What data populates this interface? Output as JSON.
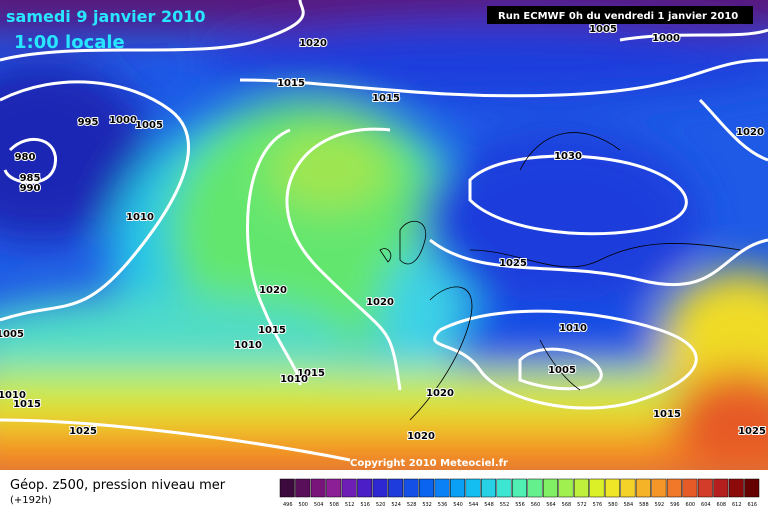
{
  "header": {
    "date": "samedi 9 janvier 2010",
    "time": "1:00 locale",
    "run": "Run ECMWF 0h du vendredi 1 janvier 2010"
  },
  "map": {
    "copyright": "Copyright 2010 Meteociel.fr",
    "isobar_labels": [
      1020,
      1005,
      1000,
      1015,
      1015,
      995,
      1000,
      1005,
      1020,
      980,
      985,
      990,
      1030,
      1010,
      1025,
      1020,
      1020,
      1015,
      1010,
      1005,
      1010,
      1005,
      1015,
      1010,
      1010,
      1015,
      1020,
      1015,
      1025,
      1025,
      1020
    ]
  },
  "footer": {
    "title": "Géop. z500, pression niveau mer",
    "lead": "(+192h)"
  },
  "legend": {
    "labels": [
      496,
      500,
      504,
      508,
      512,
      516,
      520,
      524,
      528,
      532,
      536,
      540,
      544,
      548,
      552,
      556,
      560,
      564,
      568,
      572,
      576,
      580,
      584,
      588,
      592,
      596,
      600,
      604,
      608,
      612,
      616
    ],
    "colors": [
      "#3c0a3c",
      "#5a0f5a",
      "#78147a",
      "#8c1e96",
      "#6e1eb4",
      "#4b1ec8",
      "#2d28d2",
      "#1e3cdc",
      "#1450e6",
      "#0a64f0",
      "#0a82f5",
      "#0aa0f5",
      "#14bef0",
      "#28d2e6",
      "#3ce6d2",
      "#50f0b4",
      "#64f08c",
      "#82f064",
      "#a0f050",
      "#bef03c",
      "#dcf028",
      "#f0e628",
      "#f5d228",
      "#f5b428",
      "#f59628",
      "#f07828",
      "#e65a28",
      "#d23c28",
      "#b41e1e",
      "#8c0a0a",
      "#640000"
    ]
  }
}
